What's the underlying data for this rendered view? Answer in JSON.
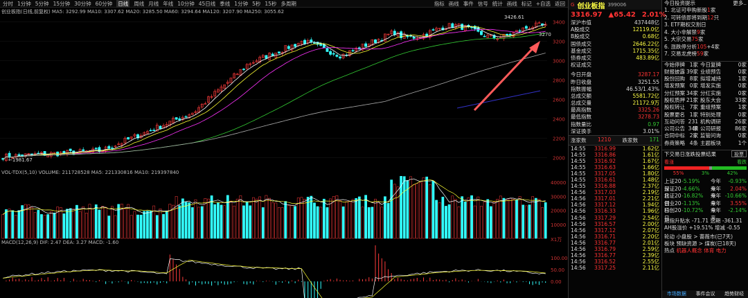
{
  "toolbar": {
    "periods": [
      "分时",
      "1分钟",
      "5分钟",
      "15分钟",
      "30分钟",
      "60分钟",
      "日线",
      "周线",
      "月线",
      "年线",
      "10分钟",
      "45日线",
      "季线",
      "1分钟",
      "5秒",
      "15秒",
      "多周期"
    ],
    "active_index": 6,
    "right": [
      "指标",
      "画线",
      "事件",
      "信号",
      "统计",
      "画线",
      "标记",
      "+自选",
      "返回"
    ]
  },
  "price_chart": {
    "legend": "创业板指(日线,前复权)  MA5: 3292.99  MA10: 3307.62  MA20: 3285.50  MA60: 3294.64  MA120: 3207.90  MA250: 3055.62",
    "ma_colors": {
      "ma5": "#ffffff",
      "ma10": "#ffff33",
      "ma20": "#ff33ff",
      "ma60": "#33cc33",
      "ma120": "#aaaaaa",
      "ma250": "#3333cc"
    },
    "axis_labels": [
      "3400",
      "3200",
      "3000",
      "2800",
      "2600",
      "2400",
      "2200",
      "2000"
    ],
    "high_label": "3426.61",
    "low_label": "1981.67",
    "last_label": "3270"
  },
  "volume_chart": {
    "legend": "VOL-TDX(5,10) VOLUME: 211728528  MA5: 221330816  MA10: 219397840",
    "axis_labels": [
      "40000",
      "30000",
      "20000",
      "10000"
    ],
    "unit": "X1万"
  },
  "macd_chart": {
    "legend": "MACD(12,26,9)  DIF: 2.47  DEA: 3.27  MACD: -1.60",
    "axis_labels": [
      "100.00",
      "50.00",
      "0.00"
    ]
  },
  "quote": {
    "flag": "G",
    "name": "创业板指",
    "code": "399006",
    "price": "3316.97",
    "change": "▲65.42",
    "change_pct": "2.01%",
    "rows1": [
      {
        "k": "深沪市值",
        "v": "437448亿",
        "c": "white"
      },
      {
        "k": "A股成交",
        "v": "12119.0亿",
        "c": "yellow"
      },
      {
        "k": "B股成交",
        "v": "0.68亿",
        "c": "yellow"
      },
      {
        "k": "国债成交",
        "v": "2646.22亿",
        "c": "yellow"
      },
      {
        "k": "基金成交",
        "v": "1715.35亿",
        "c": "yellow"
      },
      {
        "k": "债券成交",
        "v": "483.89亿",
        "c": "yellow"
      },
      {
        "k": "权证成交",
        "v": "",
        "c": "yellow"
      }
    ],
    "rows2": [
      {
        "k": "今日开盘",
        "v": "3287.17",
        "c": "red"
      },
      {
        "k": "昨日收盘",
        "v": "3251.55",
        "c": "white"
      },
      {
        "k": "指数振幅",
        "v": "46.53/1.43%",
        "c": "white"
      },
      {
        "k": "总成交额",
        "v": "5581.72亿",
        "c": "yellow"
      },
      {
        "k": "总成交量",
        "v": "21172.9万",
        "c": "yellow"
      },
      {
        "k": "最高指数",
        "v": "3325.26",
        "c": "red"
      },
      {
        "k": "最低指数",
        "v": "3278.73",
        "c": "red"
      },
      {
        "k": "指数量比",
        "v": "0.97",
        "c": "green"
      },
      {
        "k": "深证换手",
        "v": "3.01%",
        "c": "white"
      }
    ],
    "updown": {
      "up_label": "涨家数",
      "up": "1210",
      "down_label": "跌家数",
      "down": "171"
    },
    "ticks": [
      {
        "t": "14:55",
        "p": "3316.99",
        "v": "1.62亿"
      },
      {
        "t": "14:55",
        "p": "3316.86",
        "v": "1.61亿"
      },
      {
        "t": "14:55",
        "p": "3316.92",
        "v": "1.67亿"
      },
      {
        "t": "14:55",
        "p": "3316.63",
        "v": "1.66亿"
      },
      {
        "t": "14:55",
        "p": "3317.05",
        "v": "1.80亿"
      },
      {
        "t": "14:55",
        "p": "3316.61",
        "v": "1.48亿"
      },
      {
        "t": "14:55",
        "p": "3316.88",
        "v": "2.37亿"
      },
      {
        "t": "14:56",
        "p": "3317.03",
        "v": "2.19亿"
      },
      {
        "t": "14:56",
        "p": "3317.01",
        "v": "2.21亿"
      },
      {
        "t": "14:56",
        "p": "3317.12",
        "v": "1.94亿"
      },
      {
        "t": "14:56",
        "p": "3316.33",
        "v": "1.96亿"
      },
      {
        "t": "14:56",
        "p": "3317.29",
        "v": "2.54亿"
      },
      {
        "t": "14:56",
        "p": "3316.57",
        "v": "2.00亿"
      },
      {
        "t": "14:56",
        "p": "3317.12",
        "v": "2.07亿"
      },
      {
        "t": "14:56",
        "p": "3316.71",
        "v": "2.20亿"
      },
      {
        "t": "14:56",
        "p": "3316.77",
        "v": "2.01亿"
      },
      {
        "t": "14:56",
        "p": "3316.79",
        "v": "2.59亿"
      },
      {
        "t": "14:56",
        "p": "3316.77",
        "v": "2.39亿"
      },
      {
        "t": "14:56",
        "p": "3316.52",
        "v": "2.55亿"
      },
      {
        "t": "14:56",
        "p": "3317.25",
        "v": "2.11亿"
      }
    ]
  },
  "news": {
    "title": "今日投资提示",
    "more": "更多..",
    "items": [
      {
        "pre": "1. 北证可申购新股",
        "hl": "1",
        "post": "家",
        "cls": "hl"
      },
      {
        "pre": "2. 可转债即将到期",
        "hl": "12",
        "post": "只",
        "cls": "hl"
      },
      {
        "pre": "3. ETF期权交割日",
        "hl": "",
        "post": "",
        "cls": "hl"
      },
      {
        "pre": "4. 大小非解禁",
        "hl": "9",
        "post": "家",
        "cls": "hl"
      },
      {
        "pre": "5. 大宗交易",
        "hl": "75",
        "post": "家",
        "cls": "hl"
      },
      {
        "pre": "6. 涨跌停分析",
        "hl": "105",
        "post": "+4家",
        "cls": "hl"
      },
      {
        "pre": "7. 交易龙虎榜",
        "hl": "59",
        "post": "家",
        "cls": "hl"
      }
    ]
  },
  "stats": [
    {
      "a": "今始停牌",
      "b": "1家",
      "c": "今日复牌",
      "d": "0家"
    },
    {
      "a": "财报披露",
      "b": "39家",
      "c": "业绩预告",
      "d": "0家"
    },
    {
      "a": "股份回购",
      "b": "8家",
      "c": "拟增减持",
      "d": "1家"
    },
    {
      "a": "增发预案",
      "b": "0家",
      "c": "增发实施",
      "d": "0家"
    },
    {
      "a": "分红预案",
      "b": "34家",
      "c": "分红实施",
      "d": "0家"
    },
    {
      "a": "股权质押",
      "b": "21家",
      "c": "股东大会",
      "d": "33家"
    },
    {
      "a": "股权转让",
      "b": "7家",
      "c": "重组预案",
      "d": "1家"
    },
    {
      "a": "股票更名",
      "b": "1家",
      "c": "特别处理",
      "d": "0家"
    },
    {
      "a": "互动问答",
      "b": "231家",
      "c": "机构调研",
      "d": "26家"
    },
    {
      "a": "公司公告",
      "b": "348家",
      "c": "公司研报",
      "d": "86家"
    },
    {
      "a": "合同中标",
      "b": "2家",
      "c": "监管问询",
      "d": "0家"
    },
    {
      "a": "券商策略",
      "b": "4条",
      "c": "主题板块",
      "d": "1个"
    }
  ],
  "vote": {
    "title": "下交易日涨跌投票结果",
    "button": "投票",
    "up_label": "看涨",
    "down_label": "看跌",
    "up_pct": 55,
    "mid_pct": 3,
    "down_pct": 42,
    "up_pct_text": "55%",
    "mid_pct_text": "3%",
    "down_pct_text": "42%"
  },
  "perf": [
    {
      "l": "上证20日",
      "v1": "-5.19%",
      "l2": "今年来",
      "v2": "-0.93%",
      "c1": "green",
      "c2": "green"
    },
    {
      "l": "深证20日",
      "v1": "-4.66%",
      "l2": "今年来",
      "v2": "2.04%",
      "c1": "green",
      "c2": "red"
    },
    {
      "l": "北证20日",
      "v1": "-16.82%",
      "l2": "今年来",
      "v2": "-10.66%",
      "c1": "green",
      "c2": "green"
    },
    {
      "l": "创业20日",
      "v1": "-1.13%",
      "l2": "今年来",
      "v2": "3.55%",
      "c1": "green",
      "c2": "red"
    },
    {
      "l": "科创20日",
      "v1": "-10.72%",
      "l2": "今年来",
      "v2": "-2.14%",
      "c1": "green",
      "c2": "green"
    }
  ],
  "bottom": {
    "line1": "期指升贴水 -71.71  远期 -361.31",
    "line2": "AH股溢价 +19.51%  增减 -0.55",
    "line3": "轮动 小盘股 > 蔷薇市(已7天)",
    "line4": "板块 预缺资源 > 煤炭(已18天)",
    "line5_pre": "热点",
    "line5_hl": "机器人概念 体育 电力",
    "tabs": [
      "市场数据",
      "事件会议",
      "趋势财经"
    ]
  }
}
